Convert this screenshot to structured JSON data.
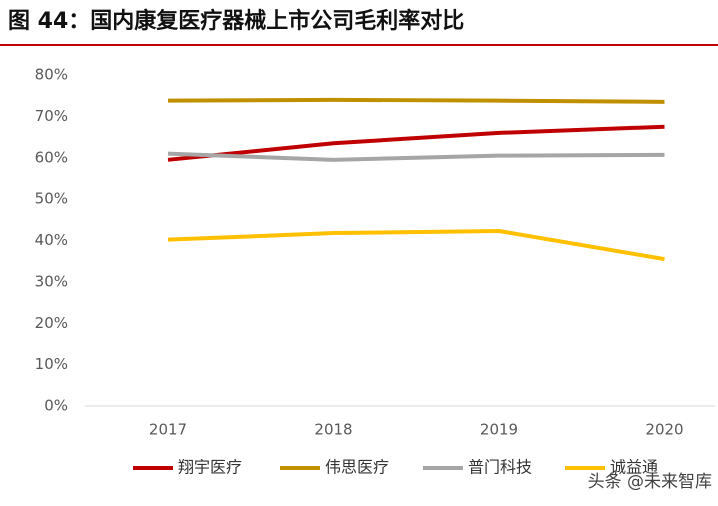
{
  "chart_data": {
    "type": "line",
    "title": "图 44：国内康复医疗器械上市公司毛利率对比",
    "categories": [
      "2017",
      "2018",
      "2019",
      "2020"
    ],
    "series": [
      {
        "name": "翔宇医疗",
        "color": "#C00000",
        "values": [
          59.5,
          63.5,
          66,
          67.5
        ]
      },
      {
        "name": "伟思医疗",
        "color": "#BF9000",
        "values": [
          73.8,
          74,
          73.8,
          73.5
        ]
      },
      {
        "name": "普门科技",
        "color": "#A6A6A6",
        "values": [
          61,
          59.5,
          60.5,
          60.7
        ]
      },
      {
        "name": "诚益通",
        "color": "#FFC000",
        "values": [
          40.2,
          41.8,
          42.3,
          35.5
        ]
      }
    ],
    "ylim": [
      0,
      80
    ],
    "yticks": [
      {
        "value": 0,
        "label": "0%"
      },
      {
        "value": 10,
        "label": "10%"
      },
      {
        "value": 20,
        "label": "20%"
      },
      {
        "value": 30,
        "label": "30%"
      },
      {
        "value": 40,
        "label": "40%"
      },
      {
        "value": 50,
        "label": "50%"
      },
      {
        "value": 60,
        "label": "60%"
      },
      {
        "value": 70,
        "label": "70%"
      },
      {
        "value": 80,
        "label": "80%"
      }
    ],
    "grid": false,
    "legend": "bottom",
    "watermark": "头条 @未来智库"
  }
}
